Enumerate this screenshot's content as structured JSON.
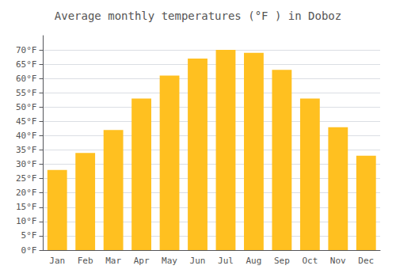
{
  "chart_data": {
    "type": "bar",
    "title": "Average monthly temperatures (°F ) in Doboz",
    "categories": [
      "Jan",
      "Feb",
      "Mar",
      "Apr",
      "May",
      "Jun",
      "Jul",
      "Aug",
      "Sep",
      "Oct",
      "Nov",
      "Dec"
    ],
    "values": [
      28,
      34,
      42,
      53,
      61,
      67,
      70,
      69,
      63,
      53,
      43,
      33
    ],
    "color": "#FFC020",
    "ylim": [
      0,
      75
    ],
    "yticks": [
      {
        "value": 0,
        "label": "0°F"
      },
      {
        "value": 5,
        "label": "5°F"
      },
      {
        "value": 10,
        "label": "10°F"
      },
      {
        "value": 15,
        "label": "15°F"
      },
      {
        "value": 20,
        "label": "20°F"
      },
      {
        "value": 25,
        "label": "25°F"
      },
      {
        "value": 30,
        "label": "30°F"
      },
      {
        "value": 35,
        "label": "35°F"
      },
      {
        "value": 40,
        "label": "40°F"
      },
      {
        "value": 45,
        "label": "45°F"
      },
      {
        "value": 50,
        "label": "50°F"
      },
      {
        "value": 55,
        "label": "55°F"
      },
      {
        "value": 60,
        "label": "60°F"
      },
      {
        "value": 65,
        "label": "65°F"
      },
      {
        "value": 70,
        "label": "70°F"
      }
    ],
    "grid": true
  }
}
